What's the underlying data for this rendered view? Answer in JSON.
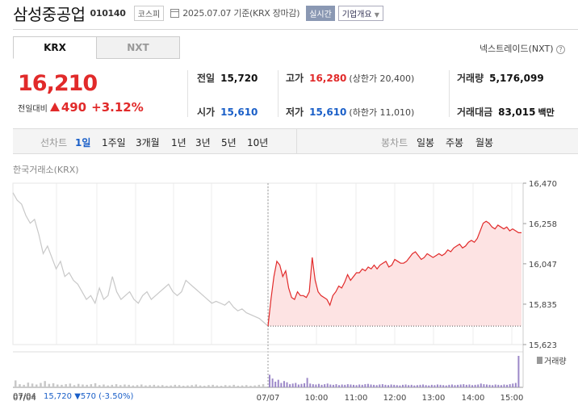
{
  "header": {
    "name": "삼성중공업",
    "code": "010140",
    "market": "코스피",
    "date_text": "2025.07.07 기준(KRX 장마감)",
    "realtime": "실시간",
    "overview": "기업개요"
  },
  "tabs": [
    {
      "label": "KRX",
      "active": true
    },
    {
      "label": "NXT",
      "active": false
    }
  ],
  "nxt_link": "넥스트레이드(NXT)",
  "price": {
    "current": "16,210",
    "change_label": "전일대비",
    "change_amount": "490",
    "change_pct": "+3.12%"
  },
  "stats": {
    "prev_label": "전일",
    "prev_value": "15,720",
    "open_label": "시가",
    "open_value": "15,610",
    "high_label": "고가",
    "high_value": "16,280",
    "upper_limit": "(상한가 20,400)",
    "low_label": "저가",
    "low_value": "15,610",
    "lower_limit": "(하한가 11,010)",
    "volume_label": "거래량",
    "volume_value": "5,176,099",
    "amount_label": "거래대금",
    "amount_value": "83,015",
    "amount_unit": "백만"
  },
  "toolbar": {
    "line_label": "선차트",
    "periods": [
      "1일",
      "1주일",
      "3개월",
      "1년",
      "3년",
      "5년",
      "10년"
    ],
    "selected_period": "1일",
    "candle_label": "봉차트",
    "candles": [
      "일봉",
      "주봉",
      "월봉"
    ]
  },
  "chart_source": "한국거래소(KRX)",
  "footer": {
    "prev_date": "07/04",
    "prev_close": "15,720",
    "prev_change": "▼570",
    "prev_pct": "(-3.50%)"
  },
  "colors": {
    "up": "#e12a2a",
    "down": "#1a5fc8",
    "today_fill": "#fde3e3",
    "prev_line": "#c8c8c8",
    "volume_today": "#9c88c8"
  },
  "chart_data": {
    "type": "line",
    "y_ticks": [
      "16,470",
      "16,258",
      "16,047",
      "15,835",
      "15,623"
    ],
    "ylim": [
      15623,
      16470
    ],
    "x_ticks": [
      "07/07",
      "10:00",
      "11:00",
      "12:00",
      "13:00",
      "14:00",
      "15:00"
    ],
    "baseline": 15720,
    "volume_label": "거래량",
    "series": [
      {
        "day": "07/04",
        "color": "#c8c8c8",
        "values": [
          16420,
          16380,
          16360,
          16300,
          16260,
          16280,
          16200,
          16100,
          16140,
          16080,
          16020,
          16060,
          15980,
          16000,
          15960,
          15940,
          15900,
          15860,
          15880,
          15840,
          15920,
          15860,
          15880,
          15980,
          15900,
          15860,
          15880,
          15900,
          15860,
          15840,
          15880,
          15900,
          15860,
          15880,
          15900,
          15920,
          15940,
          15900,
          15880,
          15900,
          15960,
          15940,
          15920,
          15900,
          15880,
          15860,
          15840,
          15850,
          15840,
          15830,
          15850,
          15820,
          15800,
          15810,
          15790,
          15780,
          15770,
          15760,
          15740,
          15720
        ]
      },
      {
        "day": "07/07",
        "color": "#e12a2a",
        "values": [
          15720,
          15860,
          15980,
          16060,
          16040,
          15980,
          16010,
          15920,
          15870,
          15860,
          15900,
          15880,
          15880,
          15870,
          15900,
          16080,
          15960,
          15900,
          15880,
          15870,
          15860,
          15830,
          15880,
          15900,
          15930,
          15920,
          15950,
          15990,
          15960,
          15980,
          16000,
          16000,
          16020,
          16010,
          16030,
          16020,
          16040,
          16020,
          16040,
          16050,
          16060,
          16030,
          16040,
          16070,
          16060,
          16050,
          16050,
          16060,
          16080,
          16100,
          16110,
          16090,
          16070,
          16080,
          16100,
          16090,
          16080,
          16090,
          16100,
          16090,
          16100,
          16120,
          16110,
          16130,
          16140,
          16150,
          16130,
          16140,
          16160,
          16170,
          16160,
          16180,
          16220,
          16260,
          16270,
          16260,
          16240,
          16230,
          16250,
          16240,
          16230,
          16240,
          16220,
          16230,
          16220,
          16210,
          16210
        ]
      }
    ],
    "volume_prev": [
      22,
      10,
      8,
      15,
      12,
      9,
      14,
      20,
      11,
      13,
      9,
      8,
      10,
      12,
      7,
      11,
      9,
      8,
      10,
      13,
      7,
      9,
      6,
      8,
      10,
      7,
      9,
      8,
      6,
      7,
      9,
      6,
      7,
      8,
      6,
      7,
      5,
      6,
      8,
      7,
      5,
      6,
      7,
      9,
      6,
      5,
      7,
      8,
      6,
      5,
      7,
      6,
      8,
      5,
      6,
      7,
      5,
      6,
      8,
      10
    ],
    "volume_today": [
      40,
      28,
      18,
      24,
      14,
      20,
      16,
      10,
      12,
      14,
      9,
      11,
      13,
      30,
      12,
      10,
      9,
      11,
      8,
      10,
      12,
      9,
      8,
      10,
      7,
      9,
      8,
      10,
      9,
      8,
      7,
      9,
      8,
      10,
      11,
      9,
      8,
      7,
      9,
      10,
      8,
      7,
      9,
      8,
      7,
      6,
      8,
      9,
      7,
      8,
      6,
      7,
      8,
      9,
      7,
      6,
      8,
      7,
      9,
      8,
      7,
      6,
      8,
      9,
      7,
      8,
      9,
      10,
      8,
      9,
      7,
      8,
      9,
      12,
      10,
      9,
      8,
      7,
      9,
      8,
      7,
      9,
      8,
      10,
      12,
      14,
      100
    ]
  }
}
